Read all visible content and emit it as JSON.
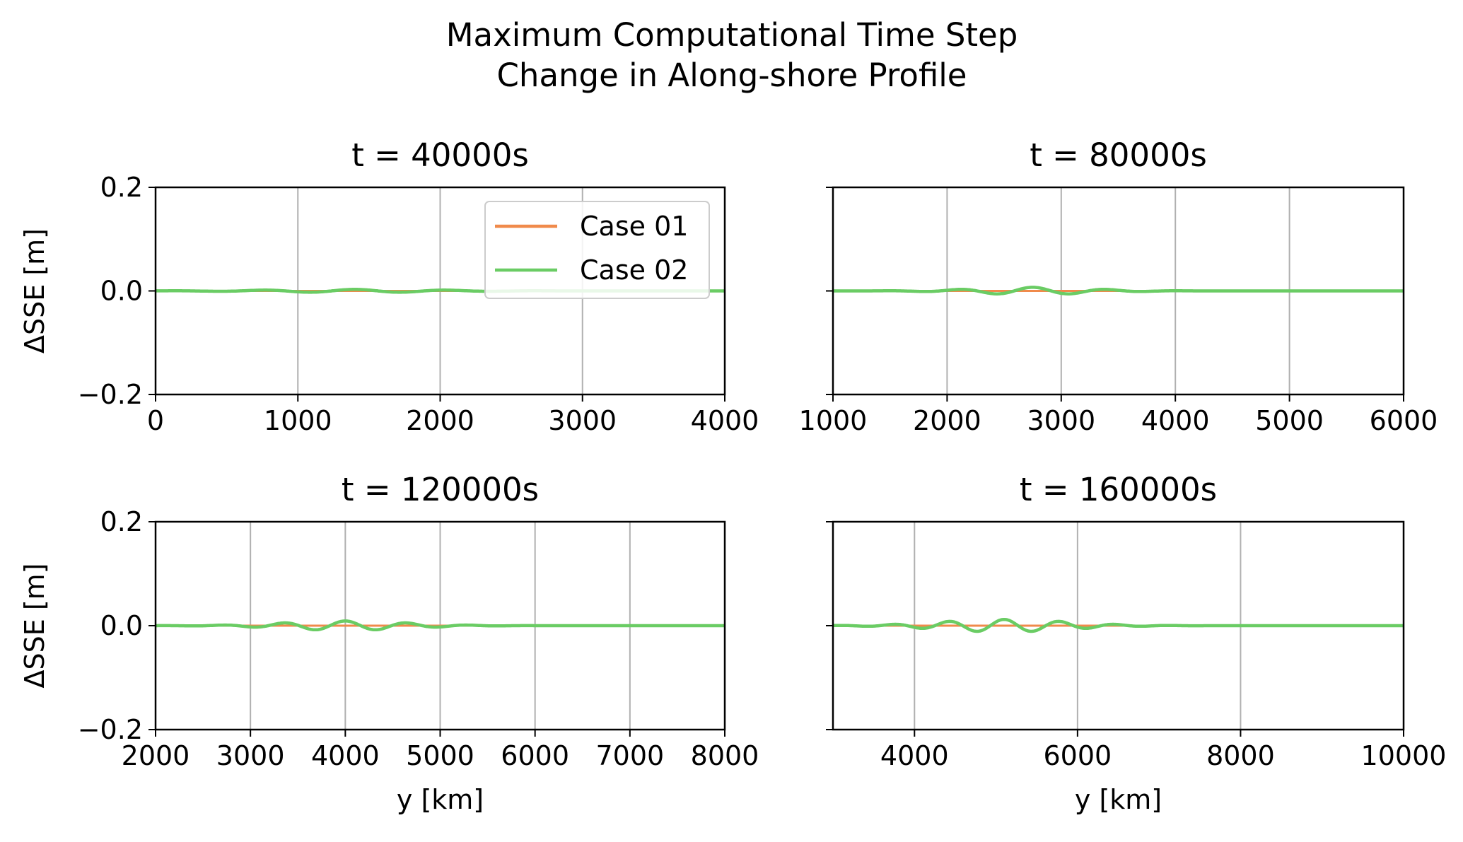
{
  "figure": {
    "title_line1": "Maximum Computational Time Step",
    "title_line2": "Change in Along-shore Profile"
  },
  "legend": [
    {
      "label": "Case 01",
      "color": "#f08a4b"
    },
    {
      "label": "Case 02",
      "color": "#6acc64"
    }
  ],
  "chart_data": [
    {
      "type": "line",
      "title": "t = 40000s",
      "xlabel": "",
      "ylabel": "ΔSSE [m]",
      "xlim": [
        0,
        4000
      ],
      "ylim": [
        -0.2,
        0.2
      ],
      "xticks": [
        "0",
        "1000",
        "2000",
        "3000",
        "4000"
      ],
      "yticks": [
        "−0.2",
        "0.0",
        "0.2"
      ],
      "grid": "x",
      "legend": "top-right",
      "wave": {
        "start": 0,
        "center": 1400,
        "width": 800,
        "wavelength": 650,
        "amplitude": 0.003
      },
      "series": [
        {
          "name": "Case 01",
          "x": [
            0,
            4000
          ],
          "y": [
            0,
            0
          ]
        },
        {
          "name": "Case 02",
          "x": [
            0,
            500,
            1000,
            1400,
            1700,
            2000,
            2500,
            3000,
            3500,
            4000
          ],
          "y": [
            0.0,
            0.001,
            -0.001,
            0.003,
            -0.002,
            0.001,
            0.0,
            0.0,
            0.0,
            0.0
          ]
        }
      ]
    },
    {
      "type": "line",
      "title": "t = 80000s",
      "xlabel": "",
      "ylabel": "",
      "xlim": [
        1000,
        6000
      ],
      "ylim": [
        -0.2,
        0.2
      ],
      "xticks": [
        "1000",
        "2000",
        "3000",
        "4000",
        "5000",
        "6000"
      ],
      "yticks": [
        "",
        "",
        ""
      ],
      "grid": "x",
      "wave": {
        "start": 1000,
        "center": 2750,
        "width": 700,
        "wavelength": 650,
        "amplitude": 0.007
      },
      "series": [
        {
          "name": "Case 01",
          "x": [
            1000,
            6000
          ],
          "y": [
            0,
            0
          ]
        },
        {
          "name": "Case 02",
          "x": [
            1000,
            2100,
            2450,
            2750,
            3100,
            3400,
            3700,
            4000,
            6000
          ],
          "y": [
            0.0,
            0.003,
            -0.004,
            0.007,
            -0.005,
            0.003,
            -0.001,
            0.0,
            0.0
          ]
        }
      ]
    },
    {
      "type": "line",
      "title": "t = 120000s",
      "xlabel": "y [km]",
      "ylabel": "ΔSSE [m]",
      "xlim": [
        2000,
        8000
      ],
      "ylim": [
        -0.2,
        0.2
      ],
      "xticks": [
        "2000",
        "3000",
        "4000",
        "5000",
        "6000",
        "7000",
        "8000"
      ],
      "yticks": [
        "−0.2",
        "0.0",
        "0.2"
      ],
      "grid": "x",
      "wave": {
        "start": 2000,
        "center": 4000,
        "width": 900,
        "wavelength": 650,
        "amplitude": 0.009
      },
      "series": [
        {
          "name": "Case 01",
          "x": [
            2000,
            8000
          ],
          "y": [
            0,
            0
          ]
        },
        {
          "name": "Case 02",
          "x": [
            2000,
            3050,
            3400,
            3750,
            4100,
            4450,
            4750,
            5100,
            5400,
            6000,
            8000
          ],
          "y": [
            0.0,
            -0.003,
            0.007,
            -0.007,
            0.009,
            -0.006,
            0.005,
            -0.003,
            0.003,
            0.0,
            0.0
          ]
        }
      ]
    },
    {
      "type": "line",
      "title": "t = 160000s",
      "xlabel": "y [km]",
      "ylabel": "",
      "xlim": [
        3000,
        10000
      ],
      "ylim": [
        -0.2,
        0.2
      ],
      "xticks": [
        "4000",
        "6000",
        "8000",
        "10000"
      ],
      "yticks": [
        "",
        "",
        ""
      ],
      "grid": "x",
      "wave": {
        "start": 3000,
        "center": 5100,
        "width": 1100,
        "wavelength": 680,
        "amplitude": 0.012
      },
      "series": [
        {
          "name": "Case 01",
          "x": [
            3000,
            10000
          ],
          "y": [
            0,
            0
          ]
        },
        {
          "name": "Case 02",
          "x": [
            3000,
            4100,
            4400,
            4750,
            5100,
            5450,
            5800,
            6100,
            6450,
            6800,
            7400,
            8000,
            10000
          ],
          "y": [
            0.0,
            0.004,
            -0.009,
            0.011,
            -0.012,
            0.012,
            -0.008,
            0.007,
            -0.005,
            0.004,
            0.002,
            0.0,
            0.0
          ]
        }
      ]
    }
  ]
}
